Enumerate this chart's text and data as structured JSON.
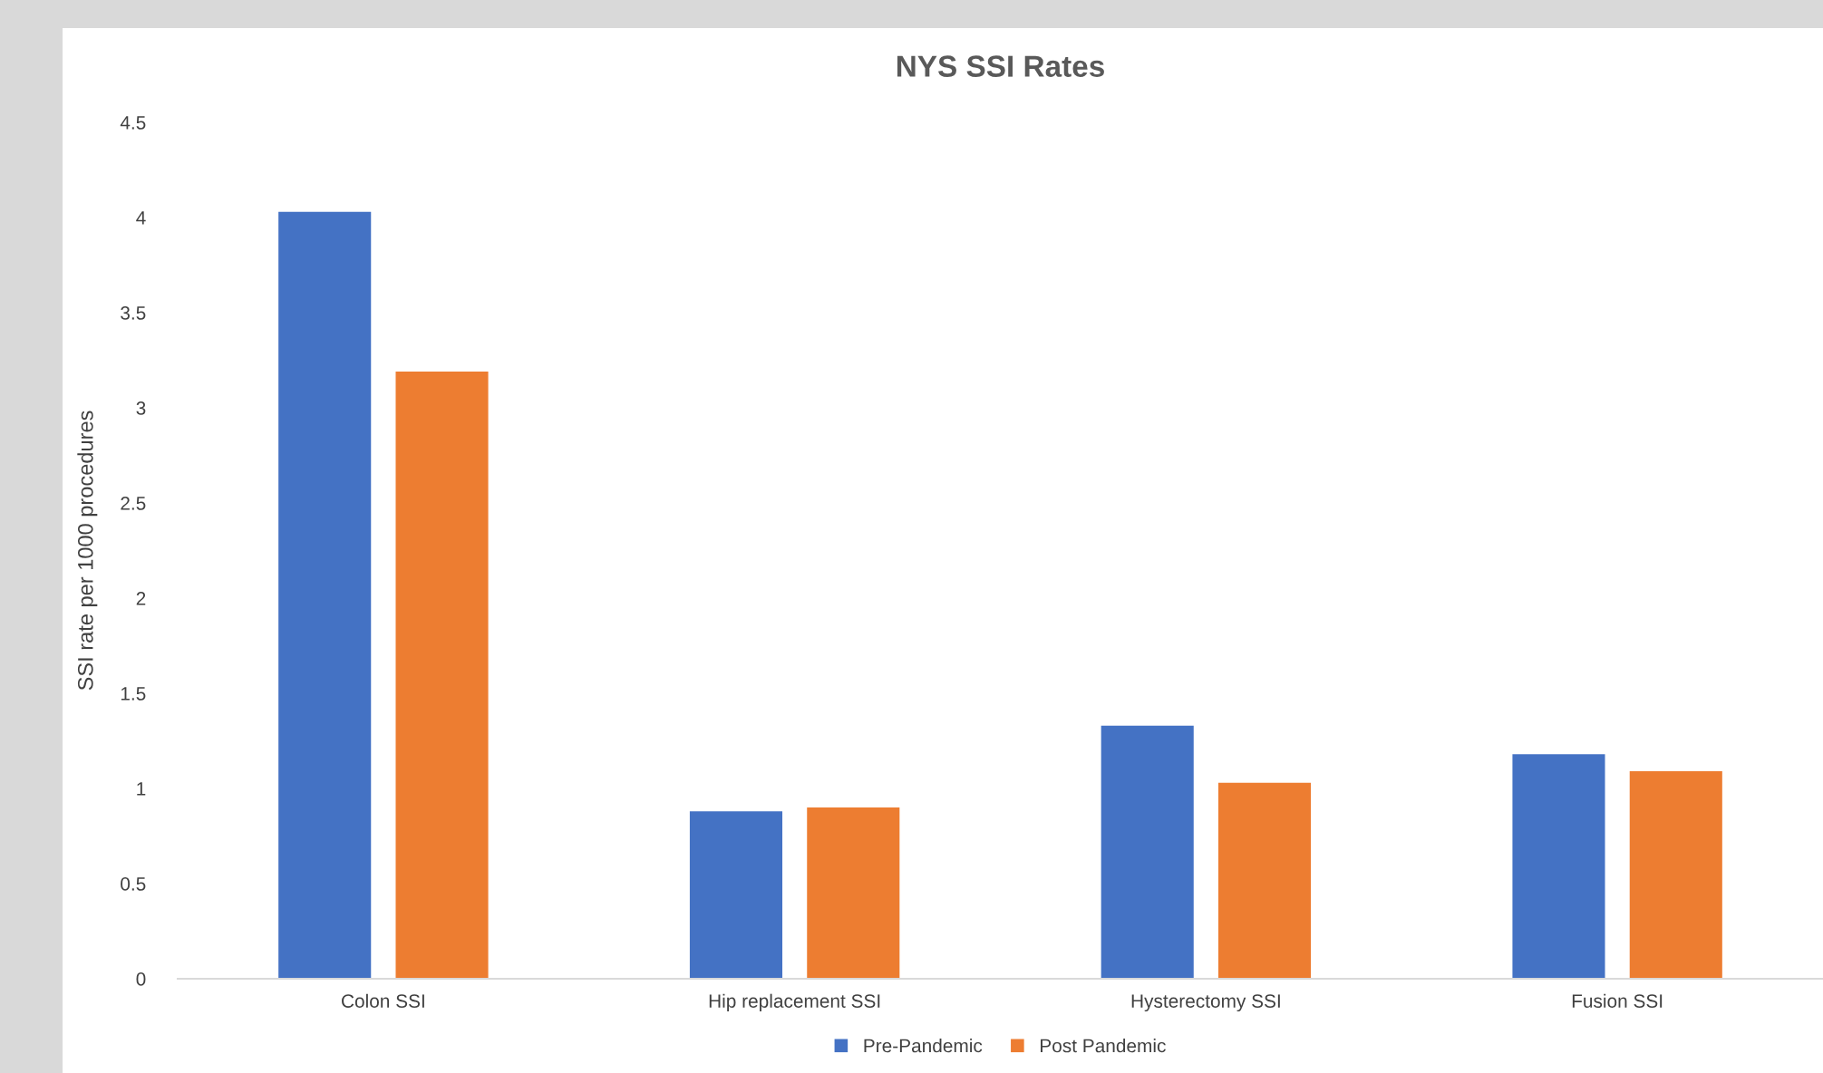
{
  "chart_data": {
    "type": "bar",
    "title": "NYS SSI Rates",
    "ylabel": "SSI rate per 1000 procedures",
    "categories": [
      "Colon SSI",
      "Hip replacement SSI",
      "Hysterectomy SSI",
      "Fusion SSI"
    ],
    "series": [
      {
        "name": "Pre-Pandemic",
        "color": "#4472c4",
        "values": [
          4.03,
          0.88,
          1.33,
          1.18
        ]
      },
      {
        "name": "Post Pandemic",
        "color": "#ed7d31",
        "values": [
          3.19,
          0.9,
          1.03,
          1.09
        ]
      }
    ],
    "ylim": [
      0,
      4.5
    ],
    "yticks": [
      0,
      0.5,
      1,
      1.5,
      2,
      2.5,
      3,
      3.5,
      4,
      4.5
    ],
    "grid": false,
    "legend": "bottom"
  }
}
